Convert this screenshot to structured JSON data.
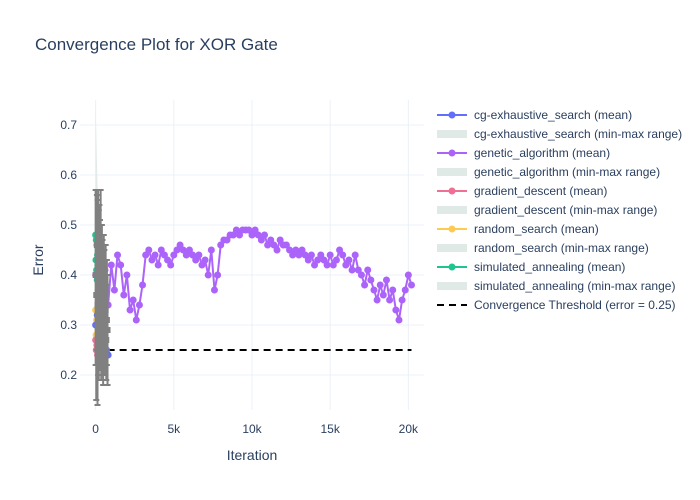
{
  "chart_data": {
    "type": "line",
    "title": "Convergence Plot for XOR Gate",
    "xlabel": "Iteration",
    "ylabel": "Error",
    "xlim": [
      -1000,
      21000
    ],
    "ylim": [
      0.13,
      0.75
    ],
    "x_ticks": [
      0,
      5000,
      10000,
      15000,
      20000
    ],
    "x_tick_labels": [
      "0",
      "5k",
      "10k",
      "15k",
      "20k"
    ],
    "y_ticks": [
      0.2,
      0.3,
      0.4,
      0.5,
      0.6,
      0.7
    ],
    "y_tick_labels": [
      "0.2",
      "0.3",
      "0.4",
      "0.5",
      "0.6",
      "0.7"
    ],
    "grid": true,
    "legend_position": "right",
    "legend": [
      {
        "label": "cg-exhaustive_search (mean)",
        "kind": "line-marker",
        "color": "#636efa"
      },
      {
        "label": "cg-exhaustive_search (min-max range)",
        "kind": "band",
        "color": "#dfe9e6"
      },
      {
        "label": "genetic_algorithm (mean)",
        "kind": "line-marker",
        "color": "#ab63fa"
      },
      {
        "label": "genetic_algorithm (min-max range)",
        "kind": "band",
        "color": "#dfe9e6"
      },
      {
        "label": "gradient_descent (mean)",
        "kind": "line-marker",
        "color": "#ef6f95"
      },
      {
        "label": "gradient_descent (min-max range)",
        "kind": "band",
        "color": "#dfe9e6"
      },
      {
        "label": "random_search (mean)",
        "kind": "line-marker",
        "color": "#fecb52"
      },
      {
        "label": "random_search (min-max range)",
        "kind": "band",
        "color": "#dfe9e6"
      },
      {
        "label": "simulated_annealing (mean)",
        "kind": "line-marker",
        "color": "#1fc591"
      },
      {
        "label": "simulated_annealing (min-max range)",
        "kind": "band",
        "color": "#dfe9e6"
      },
      {
        "label": "Convergence Threshold (error = 0.25)",
        "kind": "dash",
        "color": "#000000"
      }
    ],
    "threshold": {
      "value": 0.25,
      "x_range": [
        0,
        20200
      ]
    },
    "series": [
      {
        "name": "genetic_algorithm (mean)",
        "color": "#ab63fa",
        "x": [
          0,
          200,
          400,
          600,
          800,
          1000,
          1200,
          1400,
          1600,
          1800,
          2000,
          2200,
          2400,
          2600,
          2800,
          3000,
          3200,
          3400,
          3600,
          3800,
          4000,
          4200,
          4400,
          4600,
          4800,
          5000,
          5200,
          5400,
          5600,
          5800,
          6000,
          6200,
          6400,
          6600,
          6800,
          7000,
          7200,
          7400,
          7600,
          7800,
          8000,
          8200,
          8400,
          8600,
          8800,
          9000,
          9200,
          9400,
          9600,
          9800,
          10000,
          10200,
          10400,
          10600,
          10800,
          11000,
          11200,
          11400,
          11600,
          11800,
          12000,
          12200,
          12400,
          12600,
          12800,
          13000,
          13200,
          13400,
          13600,
          13800,
          14000,
          14200,
          14400,
          14600,
          14800,
          15000,
          15200,
          15400,
          15600,
          15800,
          16000,
          16200,
          16400,
          16600,
          16800,
          17000,
          17200,
          17400,
          17600,
          17800,
          18000,
          18200,
          18400,
          18600,
          18800,
          19000,
          19200,
          19400,
          19600,
          19800,
          20000,
          20200
        ],
        "values": [
          0.4,
          0.44,
          0.39,
          0.41,
          0.34,
          0.42,
          0.37,
          0.44,
          0.42,
          0.36,
          0.4,
          0.33,
          0.35,
          0.31,
          0.34,
          0.38,
          0.44,
          0.45,
          0.43,
          0.44,
          0.42,
          0.45,
          0.44,
          0.43,
          0.42,
          0.44,
          0.45,
          0.46,
          0.45,
          0.44,
          0.45,
          0.44,
          0.43,
          0.44,
          0.42,
          0.43,
          0.4,
          0.45,
          0.37,
          0.4,
          0.46,
          0.47,
          0.47,
          0.48,
          0.48,
          0.49,
          0.48,
          0.49,
          0.49,
          0.49,
          0.48,
          0.49,
          0.48,
          0.47,
          0.48,
          0.46,
          0.47,
          0.46,
          0.45,
          0.47,
          0.46,
          0.46,
          0.45,
          0.44,
          0.45,
          0.44,
          0.45,
          0.44,
          0.43,
          0.44,
          0.42,
          0.43,
          0.44,
          0.43,
          0.42,
          0.44,
          0.42,
          0.43,
          0.45,
          0.44,
          0.42,
          0.43,
          0.41,
          0.44,
          0.41,
          0.4,
          0.38,
          0.41,
          0.39,
          0.37,
          0.35,
          0.38,
          0.36,
          0.39,
          0.35,
          0.37,
          0.33,
          0.31,
          0.35,
          0.37,
          0.4,
          0.38
        ]
      },
      {
        "name": "simulated_annealing (mean)",
        "color": "#1fc591",
        "x": [
          0,
          20,
          40,
          60,
          80,
          100,
          120,
          140,
          160,
          180,
          200,
          220,
          240,
          260,
          280,
          300
        ],
        "values": [
          0.48,
          0.43,
          0.47,
          0.41,
          0.46,
          0.39,
          0.44,
          0.42,
          0.37,
          0.4,
          0.36,
          0.38,
          0.35,
          0.37,
          0.34,
          0.36
        ]
      },
      {
        "name": "random_search (mean)",
        "color": "#fecb52",
        "x": [
          0,
          30,
          60,
          90,
          120,
          150,
          180,
          210,
          240,
          270
        ],
        "values": [
          0.33,
          0.28,
          0.31,
          0.26,
          0.3,
          0.29,
          0.27,
          0.3,
          0.28,
          0.29
        ]
      },
      {
        "name": "gradient_descent (mean)",
        "color": "#ef6f95",
        "x": [
          0,
          40,
          80,
          120,
          160,
          200,
          240,
          280,
          320,
          360
        ],
        "values": [
          0.27,
          0.25,
          0.26,
          0.24,
          0.25,
          0.26,
          0.24,
          0.25,
          0.23,
          0.24
        ]
      },
      {
        "name": "cg-exhaustive_search (mean)",
        "color": "#636efa",
        "x": [
          0,
          100,
          200,
          300,
          400,
          500,
          600,
          700,
          800
        ],
        "values": [
          0.3,
          0.32,
          0.28,
          0.29,
          0.27,
          0.26,
          0.27,
          0.25,
          0.24
        ]
      },
      {
        "name": "min-max range (grey)",
        "color": "#808080",
        "x": [
          0,
          40,
          80,
          120,
          160,
          200,
          240,
          280,
          320,
          360,
          400,
          440,
          480,
          520,
          560,
          600,
          640,
          680,
          720,
          760
        ],
        "values": [
          0.4,
          0.36,
          0.46,
          0.34,
          0.42,
          0.3,
          0.38,
          0.33,
          0.44,
          0.29,
          0.36,
          0.32,
          0.27,
          0.34,
          0.3,
          0.28,
          0.33,
          0.27,
          0.31,
          0.29
        ],
        "lower": [
          0.22,
          0.15,
          0.25,
          0.14,
          0.2,
          0.19,
          0.22,
          0.21,
          0.26,
          0.19,
          0.23,
          0.2,
          0.18,
          0.24,
          0.21,
          0.2,
          0.25,
          0.19,
          0.22,
          0.18
        ],
        "upper": [
          0.57,
          0.57,
          0.56,
          0.55,
          0.57,
          0.53,
          0.54,
          0.51,
          0.57,
          0.48,
          0.5,
          0.47,
          0.42,
          0.48,
          0.45,
          0.4,
          0.46,
          0.38,
          0.43,
          0.4
        ]
      }
    ],
    "range_band": {
      "color": "#dfe9e6",
      "x": [
        0,
        30,
        60,
        90,
        120,
        150,
        180,
        210,
        240,
        270,
        300
      ],
      "lower": [
        0.2,
        0.22,
        0.24,
        0.25,
        0.26,
        0.27,
        0.28,
        0.29,
        0.3,
        0.31,
        0.32
      ],
      "upper": [
        0.74,
        0.7,
        0.66,
        0.62,
        0.58,
        0.55,
        0.52,
        0.5,
        0.48,
        0.46,
        0.44
      ]
    }
  }
}
